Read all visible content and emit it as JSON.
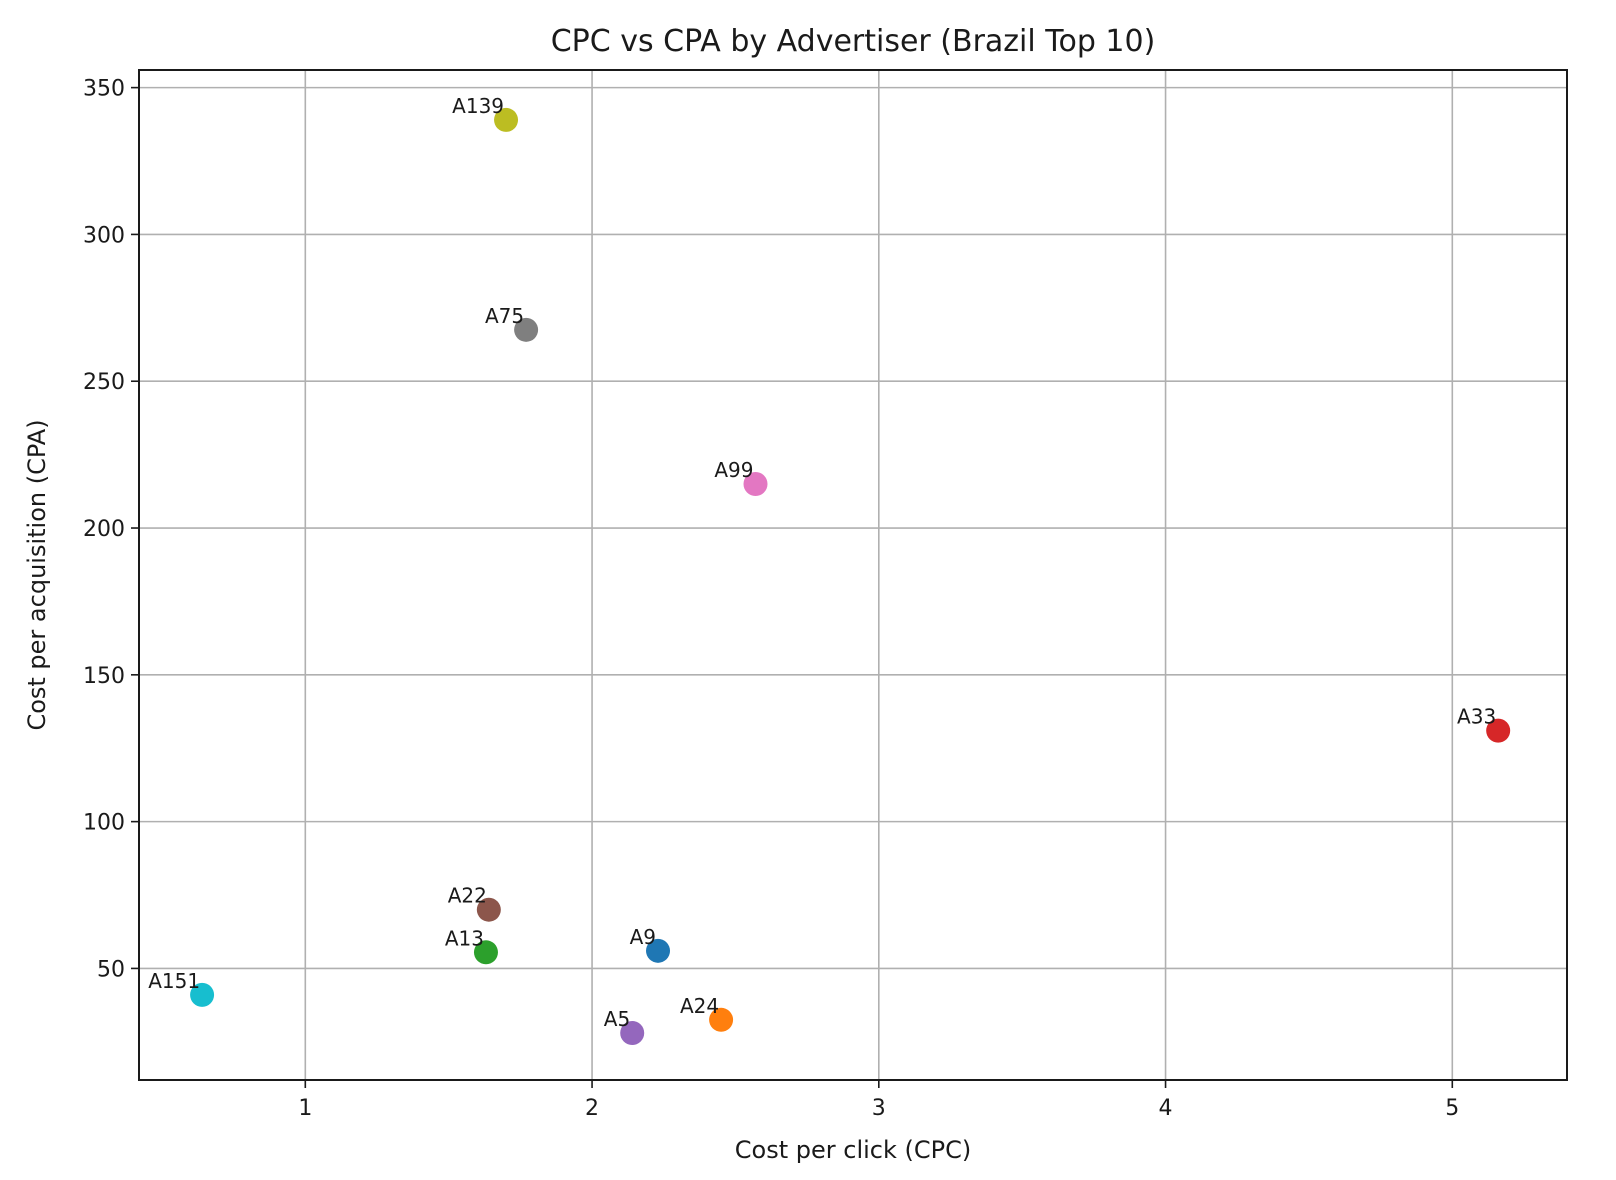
{
  "chart_data": {
    "type": "scatter",
    "title": "CPC vs CPA by Advertiser (Brazil Top 10)",
    "xlabel": "Cost per click (CPC)",
    "ylabel": "Cost per acquisition (CPA)",
    "xlim": [
      0.42,
      5.4
    ],
    "ylim": [
      12,
      356
    ],
    "xticks": [
      1,
      2,
      3,
      4,
      5
    ],
    "yticks": [
      50,
      100,
      150,
      200,
      250,
      300,
      350
    ],
    "grid": true,
    "points": [
      {
        "label": "A9",
        "x": 2.23,
        "y": 56,
        "color": "#1f77b4"
      },
      {
        "label": "A24",
        "x": 2.45,
        "y": 32.5,
        "color": "#ff7f0e"
      },
      {
        "label": "A13",
        "x": 1.63,
        "y": 55.5,
        "color": "#2ca02c"
      },
      {
        "label": "A33",
        "x": 5.16,
        "y": 131,
        "color": "#d62728"
      },
      {
        "label": "A5",
        "x": 2.14,
        "y": 28,
        "color": "#9467bd"
      },
      {
        "label": "A22",
        "x": 1.64,
        "y": 70,
        "color": "#8c564b"
      },
      {
        "label": "A99",
        "x": 2.57,
        "y": 215,
        "color": "#e377c2"
      },
      {
        "label": "A75",
        "x": 1.77,
        "y": 267.5,
        "color": "#7f7f7f"
      },
      {
        "label": "A139",
        "x": 1.7,
        "y": 339,
        "color": "#bcbd22"
      },
      {
        "label": "A151",
        "x": 0.64,
        "y": 41,
        "color": "#17becf"
      }
    ]
  }
}
